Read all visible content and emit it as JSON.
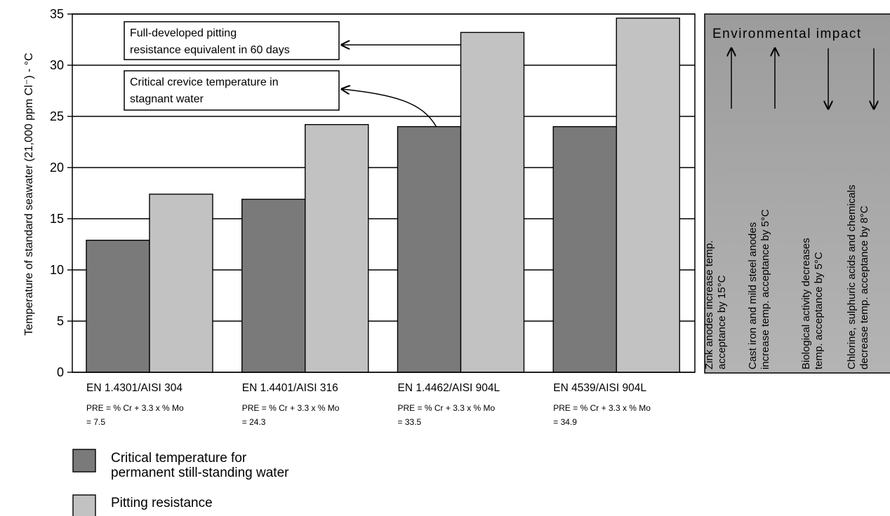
{
  "chart_data": {
    "type": "bar",
    "ylabel": "Temperature of standard seawater (21,000 ppm Cl⁻) - °C",
    "ylim": [
      0,
      35
    ],
    "yticks": [
      0,
      5,
      10,
      15,
      20,
      25,
      30,
      35
    ],
    "grid": true,
    "categories": [
      "EN 1.4301/AISI 304",
      "EN 1.4401/AISI 316",
      "EN 1.4462/AISI 904L",
      "EN 4539/AISI 904L"
    ],
    "pre_labels": [
      [
        "PRE = % Cr + 3.3 x % Mo",
        "= 7.5"
      ],
      [
        "PRE = % Cr + 3.3 x % Mo",
        "= 24.3"
      ],
      [
        "PRE = % Cr + 3.3 x % Mo",
        "= 33.5"
      ],
      [
        "PRE = % Cr + 3.3 x % Mo",
        "= 34.9"
      ]
    ],
    "series": [
      {
        "name": "Critical temperature for permanent still-standing water",
        "name_lines": [
          "Critical temperature for",
          "permanent still-standing water"
        ],
        "color": "#7a7a7a",
        "values": [
          12.9,
          16.9,
          24.0,
          24.0
        ]
      },
      {
        "name": "Pitting resistance",
        "name_lines": [
          "Pitting resistance"
        ],
        "color": "#c2c2c2",
        "values": [
          17.4,
          24.2,
          33.2,
          34.6
        ]
      }
    ],
    "annotations": [
      {
        "lines": [
          "Full-developed pitting",
          "resistance equivalent in 60 days"
        ]
      },
      {
        "lines": [
          "Critical crevice temperature in",
          "stagnant water"
        ]
      }
    ],
    "legend_position": "bottom-left"
  },
  "environmental_impact": {
    "title": "Environmental impact",
    "background": "#a8a8a8",
    "items": [
      {
        "direction": "up",
        "lines": [
          "Zink anodes increase temp.",
          "acceptance by 15°C"
        ]
      },
      {
        "direction": "up",
        "lines": [
          "Cast iron and mild steel anodes",
          "increase temp. acceptance by 5°C"
        ]
      },
      {
        "direction": "down",
        "lines": [
          "Biological activity decreases",
          "temp. acceptance by 5°C"
        ]
      },
      {
        "direction": "down",
        "lines": [
          "Chlorine, sulphuric acids and chemicals",
          "decrease temp. acceptance by 8°C"
        ]
      }
    ]
  }
}
